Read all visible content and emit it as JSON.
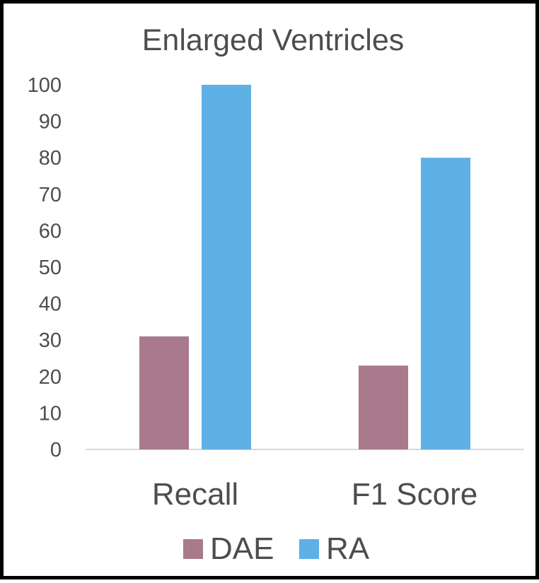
{
  "chart_data": {
    "type": "bar",
    "title": "Enlarged Ventricles",
    "xlabel": "",
    "ylabel": "",
    "categories": [
      "Recall",
      "F1 Score"
    ],
    "series": [
      {
        "name": "DAE",
        "values": [
          31,
          23
        ],
        "color": "#a87a8c"
      },
      {
        "name": "RA",
        "values": [
          100,
          80
        ],
        "color": "#5eb0e5"
      }
    ],
    "yticks": [
      "0",
      "10",
      "20",
      "30",
      "40",
      "50",
      "60",
      "70",
      "80",
      "90",
      "100"
    ],
    "ylim": [
      0,
      100
    ],
    "grid": false,
    "legend": "bottom"
  }
}
